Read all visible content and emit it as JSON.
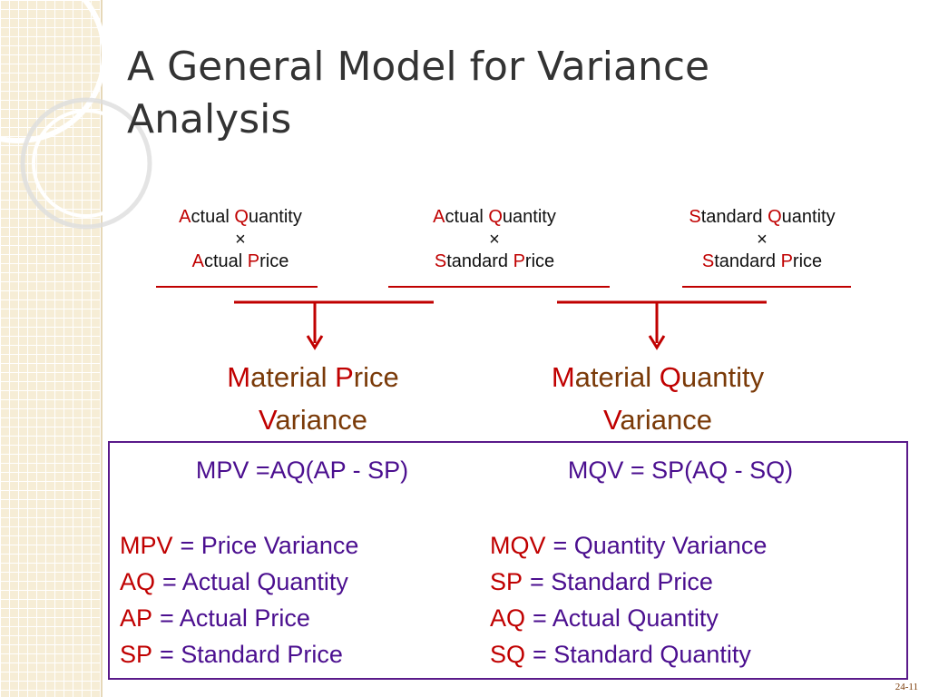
{
  "title": [
    "A General Model for Variance",
    "Analysis"
  ],
  "columns": [
    {
      "top": "Actual Quantity",
      "times": "×",
      "bottom": "Actual Price"
    },
    {
      "top": "Actual Quantity",
      "times": "×",
      "bottom": "Standard Price"
    },
    {
      "top": "Standard Quantity",
      "times": "×",
      "bottom": "Standard Price"
    }
  ],
  "variances": [
    {
      "lines": [
        "Material Price",
        "Variance"
      ],
      "formula": "MPV =AQ(AP - SP)"
    },
    {
      "lines": [
        "Material Quantity",
        "Variance"
      ],
      "formula": "MQV = SP(AQ - SQ)"
    }
  ],
  "legend": [
    [
      {
        "term": "MPV",
        "definition": "= Price Variance"
      },
      {
        "term": "AQ",
        "definition": "= Actual Quantity"
      },
      {
        "term": "AP",
        "definition": "= Actual Price"
      },
      {
        "term": "SP",
        "definition": "= Standard Price"
      }
    ],
    [
      {
        "term": "MQV",
        "definition": "= Quantity Variance"
      },
      {
        "term": "SP",
        "definition": "= Standard Price"
      },
      {
        "term": "AQ",
        "definition": "= Actual Quantity"
      },
      {
        "term": "SQ",
        "definition": "= Standard Quantity"
      }
    ]
  ],
  "page_number": "24-11"
}
